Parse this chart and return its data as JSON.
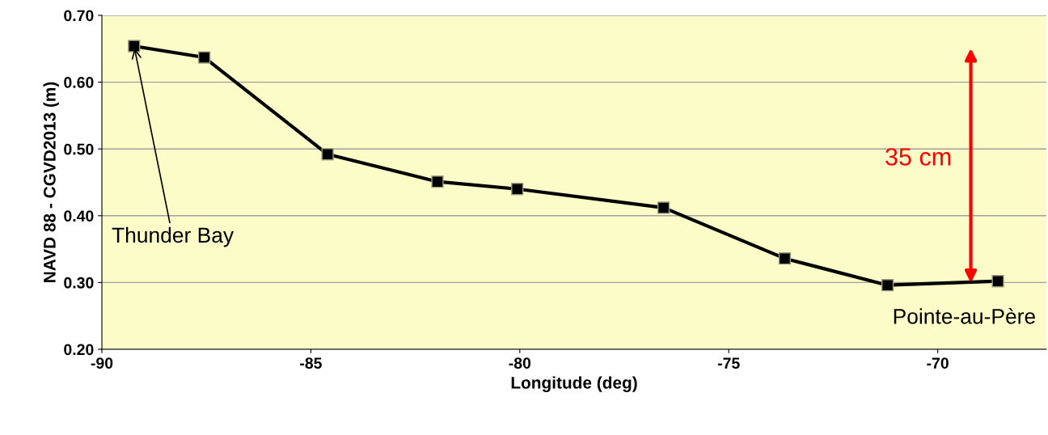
{
  "chart_data": {
    "type": "line",
    "xlabel": "Longitude (deg)",
    "ylabel": "NAVD 88 - CGVD2013 (m)",
    "x": [
      -89.23,
      -87.55,
      -84.6,
      -81.97,
      -80.06,
      -76.56,
      -73.66,
      -71.2,
      -68.56
    ],
    "series": [
      {
        "color": "#000000",
        "values": [
          0.654,
          0.637,
          0.492,
          0.451,
          0.44,
          0.412,
          0.336,
          0.296,
          0.302
        ]
      }
    ],
    "marker": "square",
    "line_style": "solid",
    "grid": "y",
    "legend": false,
    "xlim": [
      -90,
      -67.4
    ],
    "xticks": [
      -90,
      -85,
      -80,
      -75,
      -70
    ],
    "ylim": [
      0.2,
      0.7
    ],
    "yticks": [
      {
        "value": 0.2,
        "label": "0.20"
      },
      {
        "value": 0.3,
        "label": "0.30"
      },
      {
        "value": 0.4,
        "label": "0.40"
      },
      {
        "value": 0.5,
        "label": "0.50"
      },
      {
        "value": 0.6,
        "label": "0.60"
      },
      {
        "value": 0.7,
        "label": "0.70"
      }
    ],
    "annotations": [
      {
        "text": "Thunder Bay",
        "x": -89.23,
        "y": 0.654
      },
      {
        "text": "Pointe-au-Père",
        "x": -68.56,
        "y": 0.302
      },
      "35 cm"
    ]
  }
}
